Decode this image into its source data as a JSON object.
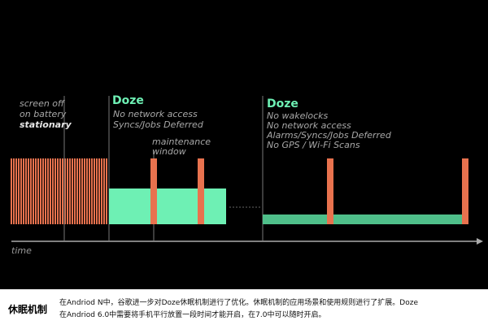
{
  "diagram": {
    "phase_screen_off": {
      "line1": "screen off",
      "line2": "on battery",
      "line3": "stationary"
    },
    "doze1": {
      "title": "Doze",
      "line1": "No network access",
      "line2": "Syncs/Jobs Deferred"
    },
    "maintenance": {
      "line1": "maintenance",
      "line2": "window"
    },
    "doze2": {
      "title": "Doze",
      "line1": "No wakelocks",
      "line2": "No network access",
      "line3": "Alarms/Syncs/Jobs Deferred",
      "line4": "No GPS / Wi-Fi Scans"
    },
    "axis_label": "time",
    "colors": {
      "activity": "#e8724e",
      "doze_block": "#6ef0b4",
      "doze_deep": "#4fbf8a",
      "divider": "#777777",
      "axis": "#aaaaaa"
    }
  },
  "caption": {
    "title": "休眠机制",
    "line1": "在Andriod N中，谷歌进一步对Doze休眠机制进行了优化。休眠机制的应用场景和使用规则进行了扩展。Doze",
    "line2": "在Andriod 6.0中需要将手机平行放置一段时间才能开启，在7.0中可以随时开启。"
  }
}
